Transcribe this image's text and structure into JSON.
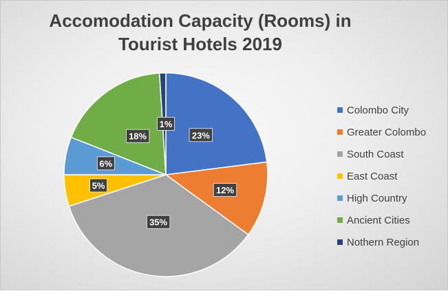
{
  "title_line1": "Accomodation Capacity (Rooms) in",
  "title_line2": "Tourist Hotels 2019",
  "chart_data": {
    "type": "pie",
    "title": "Accomodation Capacity (Rooms) in Tourist Hotels 2019",
    "legend_position": "right",
    "slices": [
      {
        "name": "Colombo City",
        "value": 23,
        "label": "23%",
        "color": "#4472C4"
      },
      {
        "name": "Greater Colombo",
        "value": 12,
        "label": "12%",
        "color": "#ED7D31"
      },
      {
        "name": "South Coast",
        "value": 35,
        "label": "35%",
        "color": "#A5A5A5"
      },
      {
        "name": "East Coast",
        "value": 5,
        "label": "5%",
        "color": "#FFC000"
      },
      {
        "name": "High Country",
        "value": 6,
        "label": "6%",
        "color": "#5B9BD5"
      },
      {
        "name": "Ancient Cities",
        "value": 18,
        "label": "18%",
        "color": "#70AD47"
      },
      {
        "name": "Nothern Region",
        "value": 1,
        "label": "1%",
        "color": "#264478"
      }
    ]
  }
}
